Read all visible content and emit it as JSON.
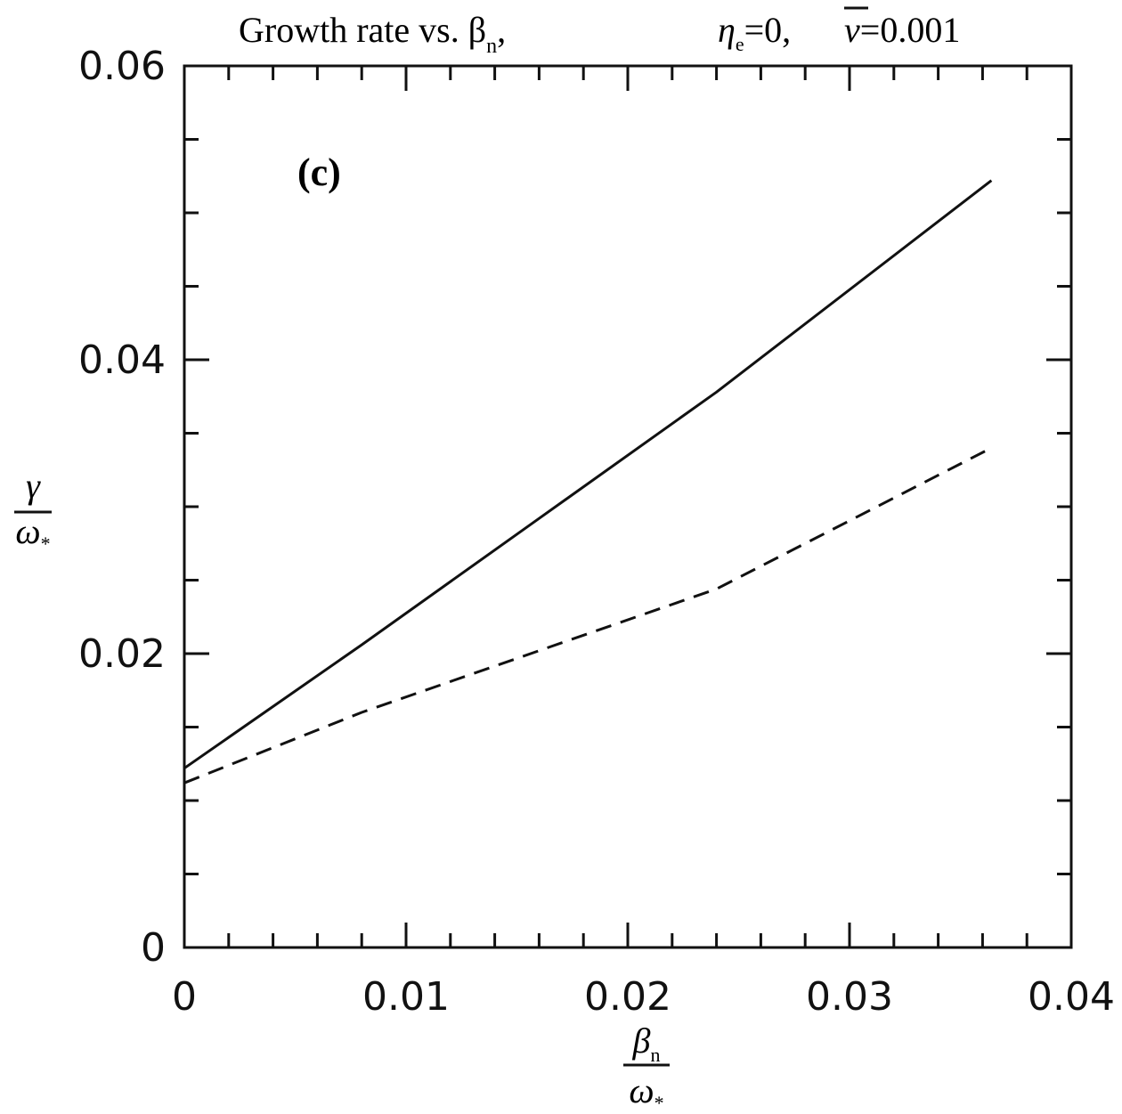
{
  "chart_data": {
    "type": "line",
    "title": "Growth rate vs. β",
    "title_subscript": "n",
    "title_separator": ",",
    "title_param1_symbol": "η",
    "title_param1_subscript": "e",
    "title_param1_value": "=0,",
    "title_param2_symbol": "ν",
    "title_param2_value": "=0.001",
    "panel_label": "(c)",
    "xlabel_numerator": "β",
    "xlabel_numerator_subscript": "n",
    "xlabel_denominator": "ω",
    "xlabel_denominator_subscript": "*",
    "ylabel_numerator": "γ",
    "ylabel_denominator": "ω",
    "ylabel_denominator_subscript": "*",
    "xlim": [
      0,
      0.04
    ],
    "ylim": [
      0,
      0.06
    ],
    "x_ticks": [
      0,
      0.01,
      0.02,
      0.03,
      0.04
    ],
    "x_tick_labels": [
      "0",
      "0.01",
      "0.02",
      "0.03",
      "0.04"
    ],
    "y_ticks": [
      0,
      0.02,
      0.04,
      0.06
    ],
    "y_tick_labels": [
      "0",
      "0.02",
      "0.04",
      "0.06"
    ],
    "x_minor_step": 0.002,
    "y_minor_step": 0.005,
    "grid": false,
    "legend": false,
    "series": [
      {
        "style": "solid",
        "color": "#111111",
        "x": [
          0,
          0.008,
          0.016,
          0.024,
          0.0364
        ],
        "y": [
          0.0122,
          0.0206,
          0.0292,
          0.0378,
          0.0522
        ]
      },
      {
        "style": "dashed",
        "color": "#111111",
        "x": [
          0,
          0.008,
          0.016,
          0.024,
          0.0364
        ],
        "y": [
          0.0112,
          0.016,
          0.0202,
          0.0244,
          0.034
        ]
      }
    ]
  }
}
